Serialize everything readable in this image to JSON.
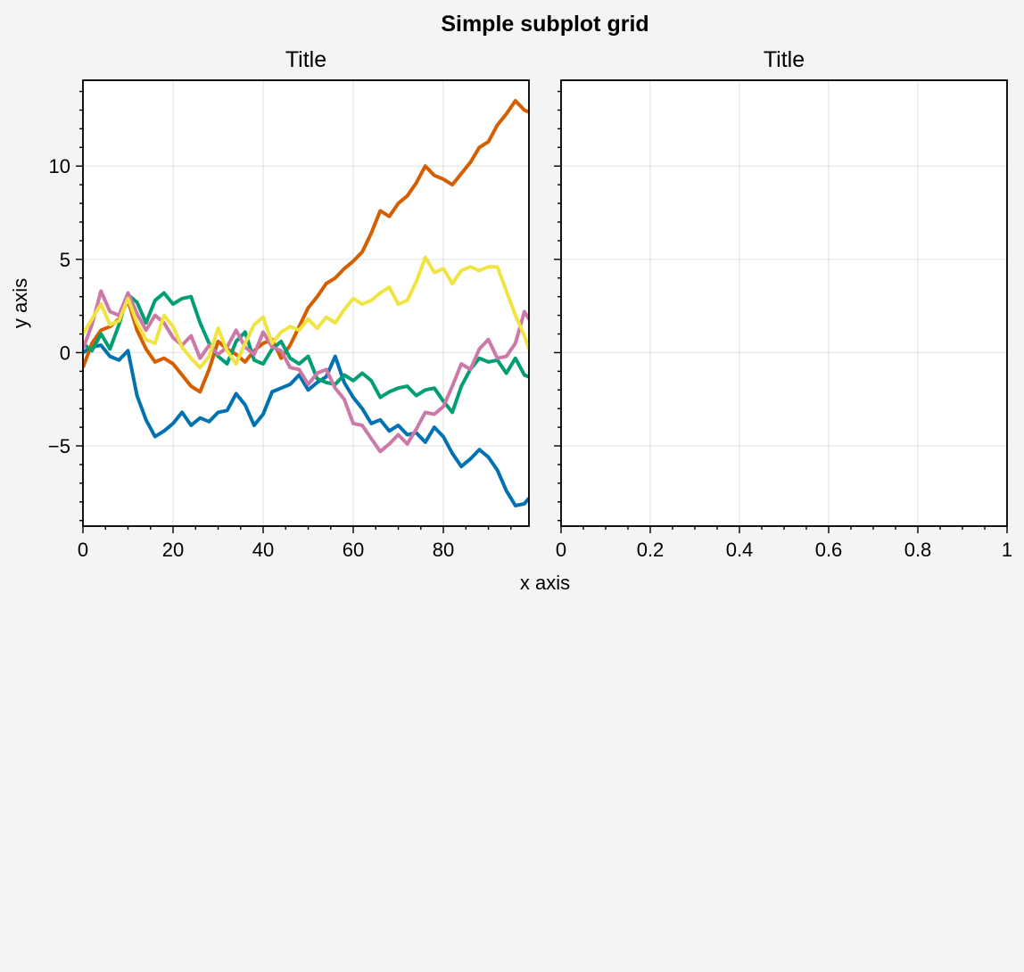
{
  "figure": {
    "suptitle": "Simple subplot grid",
    "xlabel": "x axis",
    "ylabel": "y axis"
  },
  "chart_data": [
    {
      "type": "line",
      "title": "Title",
      "xlim": [
        0,
        99
      ],
      "ylim": [
        -9.3,
        14.6
      ],
      "xticks": [
        0,
        20,
        40,
        60,
        80
      ],
      "xtick_labels": [
        "0",
        "20",
        "40",
        "60",
        "80"
      ],
      "yticks": [
        -5,
        0,
        5,
        10
      ],
      "ytick_labels": [
        "−5",
        "0",
        "5",
        "10"
      ],
      "grid": true,
      "legend": "none",
      "series": [
        {
          "color": "#0072b2",
          "x": [
            0,
            2,
            4,
            6,
            8,
            10,
            12,
            14,
            16,
            18,
            20,
            22,
            24,
            26,
            28,
            30,
            32,
            34,
            36,
            38,
            40,
            42,
            44,
            46,
            48,
            50,
            52,
            54,
            56,
            58,
            60,
            62,
            64,
            66,
            68,
            70,
            72,
            74,
            76,
            78,
            80,
            82,
            84,
            86,
            88,
            90,
            92,
            94,
            96,
            98,
            99
          ],
          "y": [
            0,
            0.3,
            0.4,
            -0.2,
            -0.4,
            0.1,
            -2.3,
            -3.6,
            -4.5,
            -4.2,
            -3.8,
            -3.2,
            -3.9,
            -3.5,
            -3.7,
            -3.2,
            -3.1,
            -2.2,
            -2.8,
            -3.9,
            -3.3,
            -2.1,
            -1.9,
            -1.7,
            -1.2,
            -2.0,
            -1.6,
            -1.3,
            -0.2,
            -1.6,
            -2.4,
            -3.0,
            -3.8,
            -3.6,
            -4.2,
            -3.9,
            -4.4,
            -4.3,
            -4.8,
            -4.0,
            -4.5,
            -5.4,
            -6.1,
            -5.7,
            -5.2,
            -5.6,
            -6.3,
            -7.4,
            -8.2,
            -8.1,
            -7.8
          ]
        },
        {
          "color": "#d55e00",
          "x": [
            0,
            2,
            4,
            6,
            8,
            10,
            12,
            14,
            16,
            18,
            20,
            22,
            24,
            26,
            28,
            30,
            32,
            34,
            36,
            38,
            40,
            42,
            44,
            46,
            48,
            50,
            52,
            54,
            56,
            58,
            60,
            62,
            64,
            66,
            68,
            70,
            72,
            74,
            76,
            78,
            80,
            82,
            84,
            86,
            88,
            90,
            92,
            94,
            96,
            98,
            99
          ],
          "y": [
            -0.8,
            0.5,
            1.2,
            1.4,
            1.8,
            2.8,
            1.2,
            0.2,
            -0.5,
            -0.3,
            -0.6,
            -1.2,
            -1.8,
            -2.1,
            -0.9,
            0.6,
            0.2,
            -0.1,
            -0.5,
            0.1,
            0.5,
            0.7,
            -0.3,
            0.4,
            1.4,
            2.4,
            3.0,
            3.7,
            4.0,
            4.5,
            4.9,
            5.4,
            6.4,
            7.6,
            7.3,
            8.0,
            8.4,
            9.1,
            10.0,
            9.5,
            9.3,
            9.0,
            9.6,
            10.2,
            11.0,
            11.3,
            12.2,
            12.8,
            13.5,
            13.0,
            12.9
          ]
        },
        {
          "color": "#009e73",
          "x": [
            0,
            2,
            4,
            6,
            8,
            10,
            12,
            14,
            16,
            18,
            20,
            22,
            24,
            26,
            28,
            30,
            32,
            34,
            36,
            38,
            40,
            42,
            44,
            46,
            48,
            50,
            52,
            54,
            56,
            58,
            60,
            62,
            64,
            66,
            68,
            70,
            72,
            74,
            76,
            78,
            80,
            82,
            84,
            86,
            88,
            90,
            92,
            94,
            96,
            98,
            99
          ],
          "y": [
            0.5,
            0.1,
            1.0,
            0.2,
            1.5,
            3.1,
            2.7,
            1.6,
            2.8,
            3.2,
            2.6,
            2.9,
            3.0,
            1.6,
            0.5,
            -0.2,
            -0.6,
            0.6,
            1.1,
            -0.4,
            -0.6,
            0.2,
            0.6,
            -0.3,
            -0.6,
            -0.2,
            -1.4,
            -1.6,
            -1.7,
            -1.2,
            -1.5,
            -1.1,
            -1.5,
            -2.4,
            -2.1,
            -1.9,
            -1.8,
            -2.3,
            -2.0,
            -1.9,
            -2.6,
            -3.2,
            -1.8,
            -0.9,
            -0.3,
            -0.5,
            -0.4,
            -1.1,
            -0.3,
            -1.2,
            -1.3
          ]
        },
        {
          "color": "#cc79a7",
          "x": [
            0,
            2,
            4,
            6,
            8,
            10,
            12,
            14,
            16,
            18,
            20,
            22,
            24,
            26,
            28,
            30,
            32,
            34,
            36,
            38,
            40,
            42,
            44,
            46,
            48,
            50,
            52,
            54,
            56,
            58,
            60,
            62,
            64,
            66,
            68,
            70,
            72,
            74,
            76,
            78,
            80,
            82,
            84,
            86,
            88,
            90,
            92,
            94,
            96,
            98,
            99
          ],
          "y": [
            0.2,
            1.5,
            3.3,
            2.2,
            2.0,
            3.2,
            2.1,
            1.2,
            2.0,
            1.6,
            0.8,
            0.4,
            0.9,
            -0.3,
            0.4,
            -0.1,
            0.3,
            1.2,
            0.3,
            -0.1,
            1.1,
            0.3,
            0.1,
            -0.8,
            -0.9,
            -1.7,
            -1.1,
            -0.9,
            -1.9,
            -2.5,
            -3.8,
            -3.9,
            -4.6,
            -5.3,
            -4.9,
            -4.4,
            -4.9,
            -4.1,
            -3.2,
            -3.3,
            -2.9,
            -1.8,
            -0.6,
            -0.9,
            0.2,
            0.7,
            -0.3,
            -0.2,
            0.5,
            2.2,
            1.8
          ]
        },
        {
          "color": "#f0e442",
          "x": [
            0,
            2,
            4,
            6,
            8,
            10,
            12,
            14,
            16,
            18,
            20,
            22,
            24,
            26,
            28,
            30,
            32,
            34,
            36,
            38,
            40,
            42,
            44,
            46,
            48,
            50,
            52,
            54,
            56,
            58,
            60,
            62,
            64,
            66,
            68,
            70,
            72,
            74,
            76,
            78,
            80,
            82,
            84,
            86,
            88,
            90,
            92,
            94,
            96,
            98,
            99
          ],
          "y": [
            1.0,
            1.8,
            2.6,
            1.5,
            1.7,
            2.9,
            1.6,
            0.7,
            0.5,
            2.0,
            1.4,
            0.3,
            -0.3,
            -0.8,
            -0.2,
            1.3,
            0.1,
            -0.6,
            0.5,
            1.5,
            1.9,
            0.5,
            1.1,
            1.4,
            1.2,
            1.8,
            1.3,
            1.9,
            1.6,
            2.3,
            2.9,
            2.6,
            2.8,
            3.2,
            3.5,
            2.6,
            2.8,
            3.8,
            5.1,
            4.3,
            4.5,
            3.7,
            4.4,
            4.6,
            4.4,
            4.6,
            4.6,
            3.3,
            2.0,
            0.9,
            0.2
          ]
        }
      ]
    },
    {
      "type": "line",
      "title": "Title",
      "xlim": [
        0,
        1
      ],
      "ylim": [
        -9.3,
        14.6
      ],
      "xticks": [
        0,
        0.2,
        0.4,
        0.6,
        0.8,
        1
      ],
      "xtick_labels": [
        "0",
        "0.2",
        "0.4",
        "0.6",
        "0.8",
        "1"
      ],
      "yticks": [
        -5,
        0,
        5,
        10
      ],
      "ytick_labels": [],
      "grid": true,
      "legend": "none",
      "series": []
    }
  ]
}
